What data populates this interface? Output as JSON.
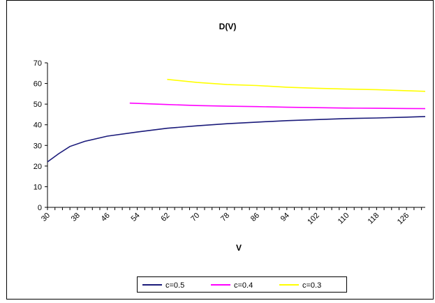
{
  "chart_data": {
    "type": "line",
    "title": "D(V)",
    "xlabel": "V",
    "ylabel": "",
    "ylim": [
      0,
      70
    ],
    "yticks": [
      0,
      10,
      20,
      30,
      40,
      50,
      60,
      70
    ],
    "xlim": [
      30,
      131
    ],
    "xtick_labels": [
      "30",
      "38",
      "46",
      "54",
      "62",
      "70",
      "78",
      "86",
      "94",
      "102",
      "110",
      "118",
      "126"
    ],
    "grid": false,
    "legend_position": "bottom",
    "series": [
      {
        "name": "c=0.5",
        "color": "#1a1a7a",
        "points": [
          [
            30,
            22
          ],
          [
            33,
            26
          ],
          [
            36,
            29.5
          ],
          [
            40,
            32
          ],
          [
            46,
            34.5
          ],
          [
            54,
            36.5
          ],
          [
            62,
            38.3
          ],
          [
            70,
            39.5
          ],
          [
            78,
            40.5
          ],
          [
            86,
            41.3
          ],
          [
            94,
            42
          ],
          [
            102,
            42.5
          ],
          [
            110,
            43
          ],
          [
            118,
            43.3
          ],
          [
            126,
            43.7
          ],
          [
            131,
            44
          ]
        ]
      },
      {
        "name": "c=0.4",
        "color": "#ff00ff",
        "points": [
          [
            52,
            50.5
          ],
          [
            62,
            49.8
          ],
          [
            70,
            49.3
          ],
          [
            78,
            49
          ],
          [
            86,
            48.8
          ],
          [
            94,
            48.5
          ],
          [
            102,
            48.3
          ],
          [
            110,
            48.1
          ],
          [
            118,
            48
          ],
          [
            126,
            47.9
          ],
          [
            131,
            47.8
          ]
        ]
      },
      {
        "name": "c=0.3",
        "color": "#ffff00",
        "points": [
          [
            62,
            62
          ],
          [
            70,
            60.5
          ],
          [
            78,
            59.5
          ],
          [
            86,
            59
          ],
          [
            94,
            58.2
          ],
          [
            102,
            57.7
          ],
          [
            110,
            57.3
          ],
          [
            118,
            57
          ],
          [
            126,
            56.5
          ],
          [
            131,
            56.2
          ]
        ]
      }
    ]
  }
}
